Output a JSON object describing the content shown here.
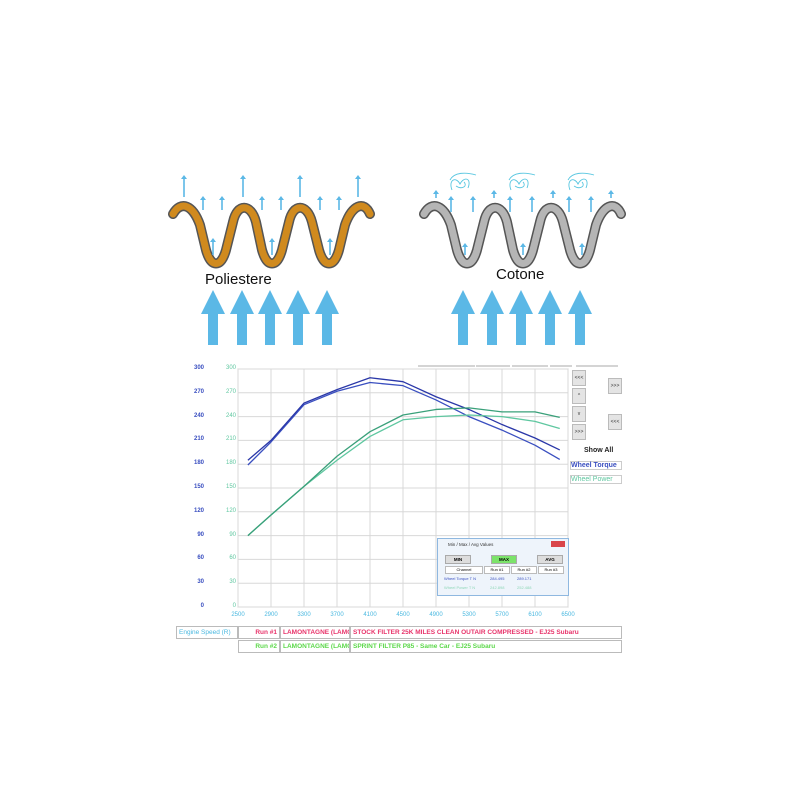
{
  "diagram": {
    "left_label": "Poliestere",
    "right_label": "Cotone",
    "colors": {
      "polyester": "#d08a1e",
      "cotton": "#b5b5b5",
      "air": "#5bb8e6"
    }
  },
  "chart_data": {
    "type": "line",
    "x": [
      2620,
      2900,
      3300,
      3700,
      4100,
      4500,
      4900,
      5300,
      5700,
      6100,
      6400
    ],
    "xticks": [
      "2500",
      "2900",
      "3300",
      "3700",
      "4100",
      "4500",
      "4900",
      "5300",
      "5700",
      "6100",
      "6500"
    ],
    "xlim": [
      2500,
      6500
    ],
    "ylim": [
      0,
      300
    ],
    "yticks_left": [
      "300",
      "270",
      "240",
      "210",
      "180",
      "150",
      "120",
      "90",
      "60",
      "30",
      "0"
    ],
    "yticks_right": [
      "300",
      "270",
      "240",
      "210",
      "180",
      "150",
      "120",
      "90",
      "60",
      "30",
      "0"
    ],
    "grid": true,
    "series": [
      {
        "channel": "Wheel Torque",
        "run": "Run #1",
        "color": "#3a4fc0",
        "values": [
          179,
          208,
          255,
          272,
          283,
          279,
          261,
          240,
          223,
          204,
          186
        ]
      },
      {
        "channel": "Wheel Torque",
        "run": "Run #2",
        "color": "#2a37a8",
        "values": [
          185,
          210,
          257,
          274,
          289,
          284,
          265,
          249,
          230,
          213,
          198
        ]
      },
      {
        "channel": "Wheel Power",
        "run": "Run #1",
        "color": "#5fc7a0",
        "values": [
          90,
          116,
          152,
          185,
          215,
          236,
          240,
          242,
          240,
          234,
          225
        ]
      },
      {
        "channel": "Wheel Power",
        "run": "Run #2",
        "color": "#3aa07a",
        "values": [
          90,
          116,
          152,
          190,
          221,
          242,
          249,
          251,
          246,
          246,
          239
        ]
      }
    ]
  },
  "side_panel": {
    "buttons": [
      "<<<",
      "^",
      "v",
      ">>>"
    ],
    "right_buttons": [
      ">>>",
      "<<<"
    ],
    "show_all": "Show All",
    "channels": [
      "Wheel Torque",
      "Wheel Power"
    ]
  },
  "popup": {
    "title": "Min / Max / Avg Values",
    "min": "MIN",
    "max": "MAX",
    "avg": "AVG",
    "headers": [
      "Channel",
      "Run #1",
      "Run #2",
      "Run #3"
    ],
    "rows": [
      {
        "channel": "Wheel Torque T N",
        "run1": "284.495",
        "run2": "289.171"
      },
      {
        "channel": "Wheel Power T N",
        "run1": "242.898",
        "run2": "252.488"
      }
    ]
  },
  "footer": {
    "x_channel": "Engine Speed (R)",
    "runs": [
      {
        "run": "Run #1",
        "name": "LAMONTAGNE (LAMC",
        "desc": "STOCK FILTER 25K MILES CLEAN OUTAIR COMPRESSED - EJ25 Subaru",
        "color": "#e8336a"
      },
      {
        "run": "Run #2",
        "name": "LAMONTAGNE (LAMC",
        "desc": "SPRINT FILTER P85 - Same Car - EJ25 Subaru",
        "color": "#5cd84a"
      }
    ]
  }
}
